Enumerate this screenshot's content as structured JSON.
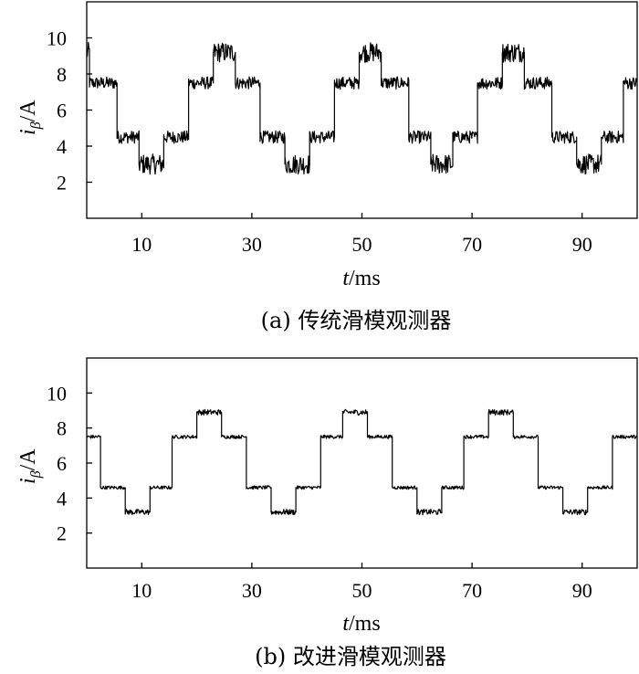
{
  "chart_data": [
    {
      "type": "line",
      "panel": "a",
      "caption": "(a) 传统滑模观测器",
      "xlabel_italic": "t",
      "xlabel_unit": "/ms",
      "ylabel_main": "i",
      "ylabel_sub": "β",
      "ylabel_unit": "/A",
      "xlim": [
        0,
        100
      ],
      "ylim": [
        0,
        12
      ],
      "xticks": [
        10,
        30,
        50,
        70,
        90
      ],
      "yticks": [
        2,
        4,
        6,
        8,
        10
      ],
      "noise": 0.35,
      "series": [
        {
          "x": [
            0,
            0.5,
            0.5,
            5.5,
            5.5,
            9.5,
            9.5,
            14.0,
            14.0,
            18.5,
            18.5,
            23.0,
            23.0,
            27.0,
            27.0,
            31.5,
            31.5,
            36.0,
            36.0,
            40.5,
            40.5,
            45.0,
            45.0,
            49.5,
            49.5,
            53.5,
            53.5,
            58.5,
            58.5,
            62.5,
            62.5,
            66.5,
            66.5,
            71.0,
            71.0,
            75.5,
            75.5,
            79.5,
            79.5,
            84.5,
            84.5,
            89.0,
            89.0,
            93.5,
            93.5,
            97.5,
            97.5,
            100
          ],
          "y": [
            9.2,
            9.2,
            7.5,
            7.5,
            4.5,
            4.5,
            3.0,
            3.0,
            4.5,
            4.5,
            7.5,
            7.5,
            9.2,
            9.2,
            7.5,
            7.5,
            4.5,
            4.5,
            3.0,
            3.0,
            4.5,
            4.5,
            7.5,
            7.5,
            9.2,
            9.2,
            7.5,
            7.5,
            4.5,
            4.5,
            3.0,
            3.0,
            4.5,
            4.5,
            7.5,
            7.5,
            9.2,
            9.2,
            7.5,
            7.5,
            4.5,
            4.5,
            3.0,
            3.0,
            4.5,
            4.5,
            7.5,
            7.5
          ]
        }
      ]
    },
    {
      "type": "line",
      "panel": "b",
      "caption": "(b) 改进滑模观测器",
      "xlabel_italic": "t",
      "xlabel_unit": "/ms",
      "ylabel_main": "i",
      "ylabel_sub": "β",
      "ylabel_unit": "/A",
      "xlim": [
        0,
        100
      ],
      "ylim": [
        0,
        12
      ],
      "xticks": [
        10,
        30,
        50,
        70,
        90
      ],
      "yticks": [
        2,
        4,
        6,
        8,
        10
      ],
      "noise": 0.1,
      "series": [
        {
          "x": [
            0,
            2.5,
            2.5,
            7.0,
            7.0,
            11.5,
            11.5,
            15.5,
            15.5,
            20.0,
            20.0,
            24.5,
            24.5,
            29.0,
            29.0,
            33.5,
            33.5,
            38.0,
            38.0,
            42.5,
            42.5,
            46.5,
            46.5,
            51.0,
            51.0,
            55.5,
            55.5,
            60.0,
            60.0,
            64.5,
            64.5,
            68.5,
            68.5,
            73.0,
            73.0,
            77.5,
            77.5,
            82.0,
            82.0,
            86.5,
            86.5,
            91.0,
            91.0,
            95.5,
            95.5,
            100
          ],
          "y": [
            7.5,
            7.5,
            4.6,
            4.6,
            3.2,
            3.2,
            4.6,
            4.6,
            7.5,
            7.5,
            8.9,
            8.9,
            7.5,
            7.5,
            4.6,
            4.6,
            3.2,
            3.2,
            4.6,
            4.6,
            7.5,
            7.5,
            8.9,
            8.9,
            7.5,
            7.5,
            4.6,
            4.6,
            3.2,
            3.2,
            4.6,
            4.6,
            7.5,
            7.5,
            8.9,
            8.9,
            7.5,
            7.5,
            4.6,
            4.6,
            3.2,
            3.2,
            4.6,
            4.6,
            7.5,
            7.5
          ]
        }
      ]
    }
  ]
}
